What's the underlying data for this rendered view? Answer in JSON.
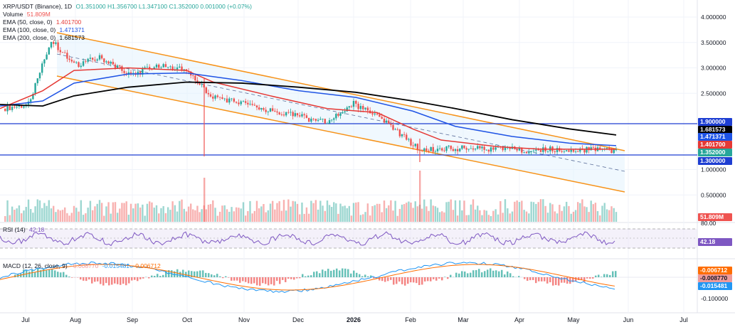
{
  "header": {
    "symbol": "XRP/USDT (Binance), 1D",
    "ohlc": "O1.351000  H1.356700  L1.347100  C1.352000  0.001000 (+0.07%)",
    "volume_label": "Volume",
    "volume_value": "51.809M",
    "ema50_label": "EMA (50, close, 0)",
    "ema50_value": "1.401700",
    "ema100_label": "EMA (100, close, 0)",
    "ema100_value": "1.471371",
    "ema200_label": "EMA (200, close, 0)",
    "ema200_value": "1.681573"
  },
  "rsi": {
    "label": "RSI (14)",
    "value": "42.18",
    "upper_tick": "80.00"
  },
  "macd": {
    "label": "MACD (12, 26, close, 9)",
    "v1": "-0.008770",
    "v2": "-0.015481",
    "v3": "-0.006712",
    "badge1": "-0.006712",
    "badge2": "-0.008770",
    "badge3": "-0.015481",
    "tick_neg": "-0.100000"
  },
  "price_axis": [
    "4.000000",
    "3.500000",
    "3.000000",
    "2.500000",
    "1.000000",
    "0.500000"
  ],
  "badges": {
    "level_high": "1.900000",
    "ema200": "1.681573",
    "ema100": "1.471371",
    "ema50": "1.401700",
    "close": "1.352000",
    "level_low": "1.300000",
    "volume": "51.809M",
    "rsi": "42.18"
  },
  "time_axis": [
    "Jul",
    "Aug",
    "Sep",
    "Oct",
    "Nov",
    "Dec",
    "2026",
    "Feb",
    "Mar",
    "Apr",
    "May",
    "Jun",
    "Jul"
  ],
  "colors": {
    "bull": "#26a69a",
    "bear": "#ef5350",
    "ema50": "#e53935",
    "ema100": "#1e53e5",
    "ema200": "#000000",
    "channel": "#f7931a",
    "level": "#1e3ed2",
    "rsi": "#7e57c2",
    "macd": "#2196f3",
    "signal": "#ff6d00"
  },
  "chart_data": {
    "type": "candlestick",
    "symbol": "XRP/USDT",
    "interval": "1D",
    "x_range": [
      "Jul",
      "Jun"
    ],
    "y_range": [
      0.5,
      4.0
    ],
    "horizontal_levels": [
      1.9,
      1.3
    ],
    "price_points": [
      [
        "Jul",
        2.2
      ],
      [
        "Jul mid",
        2.28
      ],
      [
        "Jul end",
        3.55
      ],
      [
        "Aug",
        3.05
      ],
      [
        "Aug mid",
        3.2
      ],
      [
        "Sep",
        2.85
      ],
      [
        "Sep mid",
        3.05
      ],
      [
        "Oct",
        2.95
      ],
      [
        "Oct mid",
        2.45
      ],
      [
        "Nov",
        2.3
      ],
      [
        "Nov mid",
        2.15
      ],
      [
        "Dec",
        2.05
      ],
      [
        "Dec mid",
        1.92
      ],
      [
        "2026",
        2.3
      ],
      [
        "Jan mid",
        1.95
      ],
      [
        "Feb",
        1.38
      ],
      [
        "Feb mid",
        1.42
      ],
      [
        "Mar",
        1.4
      ],
      [
        "Mar mid",
        1.45
      ],
      [
        "Apr",
        1.33
      ],
      [
        "Apr mid",
        1.4
      ],
      [
        "May",
        1.38
      ],
      [
        "May mid",
        1.39
      ],
      [
        "May end",
        1.352
      ]
    ],
    "ema50_last": 1.4017,
    "ema100_last": 1.471371,
    "ema200_last": 1.681573,
    "volume_last": "51.809M",
    "rsi_last": 42.18,
    "macd_last": -0.00877,
    "signal_last": -0.015481,
    "hist_last": -0.006712
  }
}
